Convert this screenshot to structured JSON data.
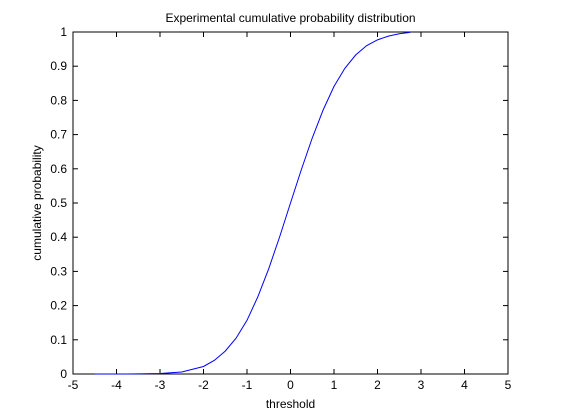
{
  "chart_data": {
    "type": "line",
    "title": "Experimental cumulative probability distribution",
    "xlabel": "threshold",
    "ylabel": "cumulative probability",
    "xlim": [
      -5,
      5
    ],
    "ylim": [
      0,
      1
    ],
    "xticks": [
      -5,
      -4,
      -3,
      -2,
      -1,
      0,
      1,
      2,
      3,
      4,
      5
    ],
    "yticks": [
      0,
      0.1,
      0.2,
      0.3,
      0.4,
      0.5,
      0.6,
      0.7,
      0.8,
      0.9,
      1
    ],
    "grid": false,
    "legend": "none",
    "line_color": "#0000ff",
    "series": [
      {
        "x": [
          -4.5,
          -4.0,
          -3.5,
          -3.0,
          -2.5,
          -2.0,
          -1.75,
          -1.5,
          -1.25,
          -1.0,
          -0.75,
          -0.5,
          -0.25,
          0.0,
          0.25,
          0.5,
          0.75,
          1.0,
          1.25,
          1.5,
          1.75,
          2.0,
          2.25,
          2.5,
          2.75
        ],
        "y": [
          0.0,
          0.0,
          0.0003,
          0.0015,
          0.006,
          0.022,
          0.04,
          0.067,
          0.105,
          0.157,
          0.226,
          0.308,
          0.401,
          0.5,
          0.598,
          0.69,
          0.772,
          0.841,
          0.894,
          0.933,
          0.96,
          0.977,
          0.988,
          0.995,
          0.999
        ]
      }
    ]
  }
}
